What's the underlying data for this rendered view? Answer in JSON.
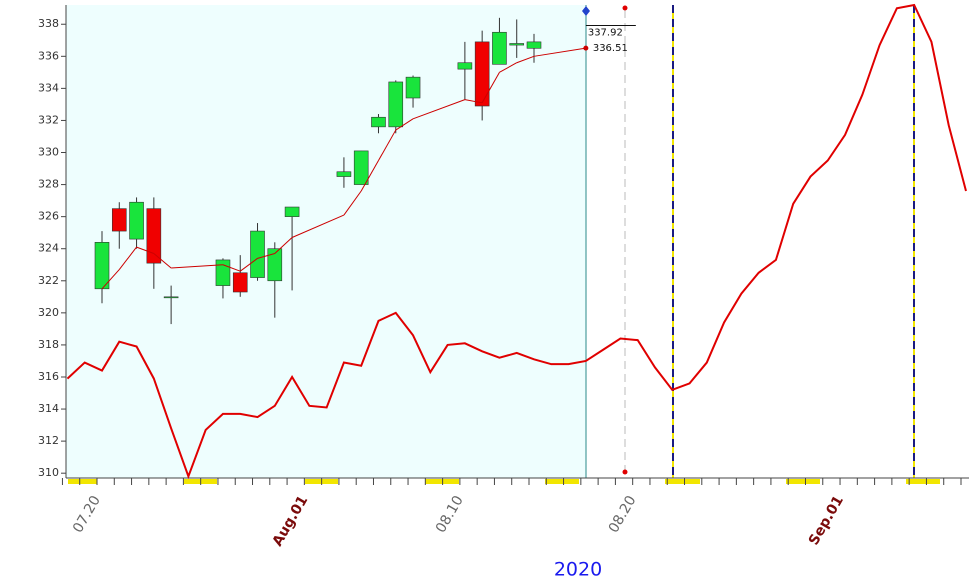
{
  "chart_data": {
    "type": "candlestick",
    "x_label": "2020",
    "categories": [
      null,
      null,
      "07.20",
      null,
      null,
      null,
      null,
      null,
      null,
      null,
      null,
      null,
      null,
      null,
      "Aug.01",
      null,
      null,
      null,
      null,
      null,
      null,
      null,
      null,
      "08.10",
      null,
      null,
      null,
      null,
      null,
      null,
      null,
      null,
      null,
      "08.20",
      null,
      null,
      null,
      null,
      null,
      null,
      null,
      null,
      null,
      null,
      null,
      "Sep.01",
      null,
      null,
      null,
      null,
      null,
      null,
      null
    ],
    "open": [
      null,
      null,
      321.5,
      326.5,
      324.6,
      326.5,
      321.0,
      null,
      null,
      321.7,
      322.5,
      322.2,
      322.0,
      326.0,
      null,
      null,
      328.5,
      328.0,
      331.6,
      331.6,
      333.4,
      null,
      null,
      335.2,
      336.9,
      335.5,
      336.7,
      336.5,
      null,
      null,
      null,
      null,
      null,
      null,
      null,
      null,
      null,
      null,
      null,
      null,
      null,
      null,
      null,
      null,
      null,
      null,
      null,
      null,
      null,
      null,
      null,
      null,
      null
    ],
    "high": [
      null,
      null,
      325.1,
      326.9,
      327.2,
      327.2,
      321.7,
      null,
      null,
      323.4,
      323.6,
      325.6,
      324.4,
      326.6,
      null,
      null,
      329.7,
      330.1,
      332.4,
      334.5,
      334.8,
      null,
      null,
      336.9,
      337.6,
      338.4,
      338.3,
      337.4,
      null,
      null,
      null,
      null,
      null,
      null,
      null,
      null,
      null,
      null,
      null,
      null,
      null,
      null,
      null,
      null,
      null,
      null,
      null,
      null,
      null,
      null,
      null,
      null,
      null
    ],
    "low": [
      null,
      null,
      320.6,
      324.0,
      324.0,
      321.5,
      319.3,
      null,
      null,
      320.9,
      321.0,
      322.0,
      319.7,
      321.4,
      null,
      null,
      327.8,
      328.0,
      331.2,
      331.2,
      332.8,
      null,
      null,
      333.3,
      332.0,
      335.5,
      335.9,
      335.6,
      null,
      null,
      null,
      null,
      null,
      null,
      null,
      null,
      null,
      null,
      null,
      null,
      null,
      null,
      null,
      null,
      null,
      null,
      null,
      null,
      null,
      null,
      null,
      null,
      null
    ],
    "close": [
      null,
      null,
      324.4,
      325.1,
      326.9,
      323.1,
      321.0,
      null,
      null,
      323.3,
      321.3,
      325.1,
      324.0,
      326.6,
      null,
      null,
      328.8,
      330.1,
      332.2,
      334.4,
      334.7,
      null,
      null,
      335.6,
      332.9,
      337.5,
      336.8,
      336.9,
      null,
      null,
      null,
      null,
      null,
      null,
      null,
      null,
      null,
      null,
      null,
      null,
      null,
      null,
      null,
      null,
      null,
      null,
      null,
      null,
      null,
      null,
      null,
      null,
      null
    ],
    "up_color": "#19e43c",
    "down_color": "#f00000",
    "series": [
      {
        "color": "#cc0000",
        "values": [
          null,
          null,
          321.5,
          322.7,
          324.1,
          323.7,
          322.8,
          null,
          null,
          323.0,
          322.6,
          323.4,
          323.7,
          324.7,
          null,
          null,
          326.1,
          327.6,
          329.5,
          331.4,
          332.1,
          null,
          null,
          333.3,
          333.1,
          335.0,
          335.6,
          336.0,
          null,
          null,
          336.51,
          null,
          null,
          null,
          null,
          null,
          null,
          null,
          null,
          null,
          null,
          null,
          null,
          null,
          null,
          null,
          null,
          null,
          null,
          null,
          null,
          null,
          null
        ]
      },
      {
        "color": "#e00000",
        "values": [
          315.9,
          316.9,
          316.4,
          318.2,
          317.9,
          315.9,
          312.8,
          309.8,
          312.7,
          313.7,
          313.7,
          313.5,
          314.2,
          316.0,
          314.2,
          314.1,
          316.9,
          316.7,
          319.5,
          320.0,
          318.6,
          316.3,
          318.0,
          318.1,
          317.6,
          317.2,
          317.5,
          317.1,
          316.8,
          316.8,
          317.0,
          317.7,
          318.4,
          318.3,
          316.6,
          315.2,
          315.6,
          316.9,
          319.4,
          321.2,
          322.5,
          323.3,
          326.8,
          328.5,
          329.5,
          331.1,
          333.6,
          336.7,
          339.0,
          339.2,
          336.9,
          331.7,
          327.6
        ]
      }
    ],
    "annotations": [
      337.92
    ],
    "ylim": [
      309.7,
      339.2
    ],
    "yticks": [
      310,
      312,
      314,
      316,
      318,
      320,
      322,
      324,
      326,
      328,
      330,
      332,
      334,
      336,
      338
    ]
  }
}
